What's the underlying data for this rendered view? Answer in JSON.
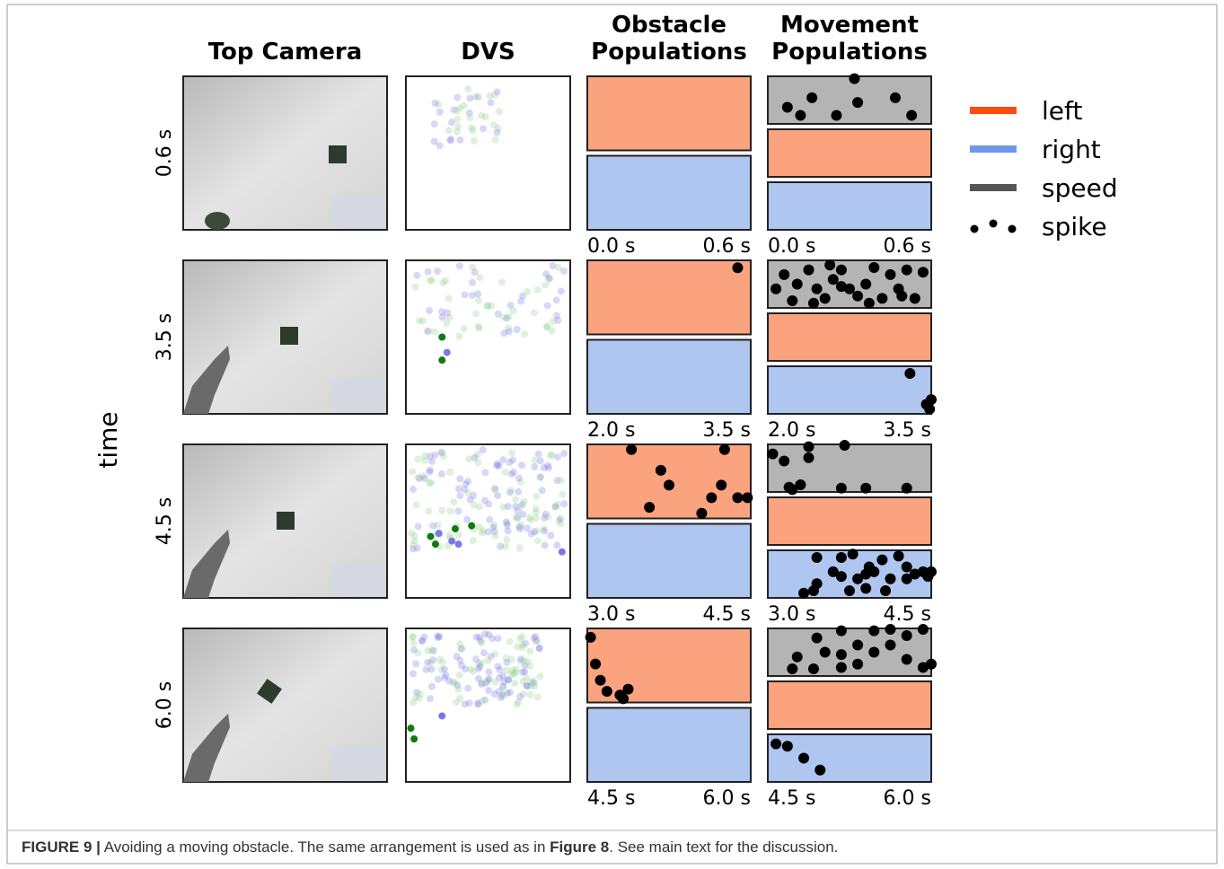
{
  "column_headers": [
    [
      "Top Camera"
    ],
    [
      "DVS"
    ],
    [
      "Obstacle",
      "Populations"
    ],
    [
      "Movement",
      "Populations"
    ]
  ],
  "y_axis_label": "time",
  "rows": [
    {
      "label": "0.6 s",
      "start": "0.0 s",
      "end": "0.6 s"
    },
    {
      "label": "3.5 s",
      "start": "2.0 s",
      "end": "3.5 s"
    },
    {
      "label": "4.5 s",
      "start": "3.0 s",
      "end": "4.5 s"
    },
    {
      "label": "6.0 s",
      "start": "4.5 s",
      "end": "6.0 s"
    }
  ],
  "legend": [
    "left",
    "right",
    "speed",
    "spike"
  ],
  "caption": {
    "label": "FIGURE 9 |",
    "text1": "Avoiding a moving obstacle. The same arrangement is used as in",
    "ref": "Figure 8",
    "text2": ". See main text for the discussion."
  }
}
